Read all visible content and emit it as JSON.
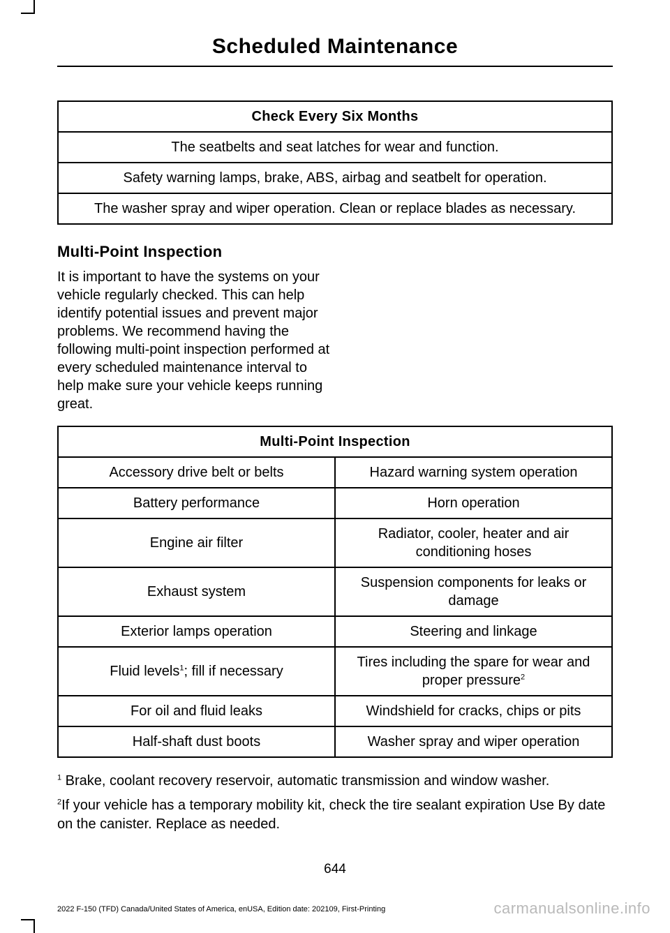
{
  "page": {
    "title": "Scheduled Maintenance",
    "number": "644",
    "edition": "2022 F-150 (TFD) Canada/United States of America, enUSA, Edition date: 202109, First-Printing",
    "watermark": "carmanualsonline.info"
  },
  "table1": {
    "header": "Check Every Six Months",
    "rows": [
      "The seatbelts and seat latches for wear and function.",
      "Safety warning lamps, brake, ABS, airbag and seatbelt for operation.",
      "The washer spray and wiper operation. Clean or replace blades as necessary."
    ]
  },
  "section": {
    "heading": "Multi-Point Inspection",
    "body": "It is important to have the systems on your vehicle regularly checked. This can help identify potential issues and prevent major problems. We recommend having the following multi-point inspection performed at every scheduled maintenance interval to help make sure your vehicle keeps running great."
  },
  "table2": {
    "header": "Multi-Point Inspection",
    "rows": [
      {
        "left": "Accessory drive belt or belts",
        "right": "Hazard warning system operation"
      },
      {
        "left": "Battery performance",
        "right": "Horn operation"
      },
      {
        "left": "Engine air filter",
        "right": "Radiator, cooler, heater and air conditioning hoses"
      },
      {
        "left": "Exhaust system",
        "right": "Suspension components for leaks or damage"
      },
      {
        "left": "Exterior lamps operation",
        "right": "Steering and linkage"
      },
      {
        "left_pre": "Fluid levels",
        "left_sup": "1",
        "left_post": "; fill if necessary",
        "right_pre": "Tires including the spare for wear and proper pressure",
        "right_sup": "2",
        "right_post": ""
      },
      {
        "left": "For oil and fluid leaks",
        "right": "Windshield for cracks, chips or pits"
      },
      {
        "left": "Half-shaft dust boots",
        "right": "Washer spray and wiper operation"
      }
    ]
  },
  "footnotes": {
    "f1_sup": "1",
    "f1_text": " Brake, coolant recovery reservoir, automatic transmission and window washer.",
    "f2_sup": "2",
    "f2_text": "If your vehicle has a temporary mobility kit, check the tire sealant expiration Use By date on the canister. Replace as needed."
  }
}
